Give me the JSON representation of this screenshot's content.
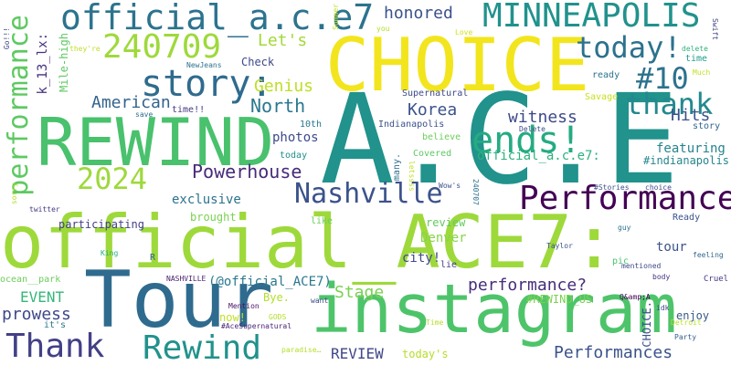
{
  "cloud": {
    "words": [
      {
        "text": "official_ACE7:",
        "color": "#9ed93b"
      },
      {
        "text": "A.C.E",
        "color": "#21928c"
      },
      {
        "text": "instagram",
        "color": "#4ec46a"
      },
      {
        "text": "Tour",
        "color": "#2f6b8e"
      },
      {
        "text": "CHOICE",
        "color": "#f2e51d"
      },
      {
        "text": "REWIND",
        "color": "#49c16d"
      },
      {
        "text": "official_a.c.e7",
        "color": "#2c738e"
      },
      {
        "text": "MINNEAPOLIS",
        "color": "#21928c"
      },
      {
        "text": "Thank",
        "color": "#424086"
      },
      {
        "text": "Rewind",
        "color": "#21928c"
      },
      {
        "text": "story:",
        "color": "#2f6b8e"
      },
      {
        "text": "240709",
        "color": "#9ed93b"
      },
      {
        "text": "Performance",
        "color": "#440154"
      },
      {
        "text": "Nashville",
        "color": "#3b528b"
      },
      {
        "text": "thank",
        "color": "#23898e"
      },
      {
        "text": "ends!",
        "color": "#25ab82"
      },
      {
        "text": "today!",
        "color": "#2c728e"
      },
      {
        "text": "2024",
        "color": "#9ed93b"
      },
      {
        "text": "#10",
        "color": "#2c728e"
      },
      {
        "text": "performance",
        "color": "#5ec962"
      },
      {
        "text": "Powerhouse",
        "color": "#472a7a"
      },
      {
        "text": "Let's",
        "color": "#a2da37"
      },
      {
        "text": "Genius",
        "color": "#bddf26"
      },
      {
        "text": "American",
        "color": "#33638d"
      },
      {
        "text": "North",
        "color": "#2a788e"
      },
      {
        "text": "honored",
        "color": "#3b528b"
      },
      {
        "text": "Korea",
        "color": "#3b528b"
      },
      {
        "text": "witness",
        "color": "#3e4a89"
      },
      {
        "text": "Hits",
        "color": "#3b528b"
      },
      {
        "text": "performance?",
        "color": "#472d7b"
      },
      {
        "text": "Performances",
        "color": "#3b528b"
      },
      {
        "text": "prowess",
        "color": "#3e4989"
      },
      {
        "text": "EVENT",
        "color": "#35b779"
      },
      {
        "text": "Stage",
        "color": "#7ad151"
      },
      {
        "text": "REVIEW",
        "color": "#3f4788"
      },
      {
        "text": "exclusive",
        "color": "#2c728e"
      },
      {
        "text": "(@official_ACE7)",
        "color": "#2a788e"
      },
      {
        "text": "official_a.c.e7:",
        "color": "#2db27d"
      },
      {
        "text": "featuring",
        "color": "#25838e"
      },
      {
        "text": "#indianapolis",
        "color": "#25858e"
      },
      {
        "text": "photos",
        "color": "#3e4a89"
      },
      {
        "text": "k_13_lx:",
        "color": "#46327e"
      },
      {
        "text": "Mile-high",
        "color": "#5ec962"
      },
      {
        "text": "participating",
        "color": "#433e85"
      },
      {
        "text": "brought",
        "color": "#7ad151"
      },
      {
        "text": "review",
        "color": "#63cb5f"
      },
      {
        "text": "Denver",
        "color": "#86d549"
      },
      {
        "text": "city!",
        "color": "#3e4989"
      },
      {
        "text": "tour",
        "color": "#3b528b"
      },
      {
        "text": "#REWIND_US",
        "color": "#7ad151"
      },
      {
        "text": "enjoy",
        "color": "#38598c"
      },
      {
        "text": "Bye.",
        "color": "#b5de2b"
      },
      {
        "text": "now!",
        "color": "#c2df23"
      },
      {
        "text": "today's",
        "color": "#b5de2b"
      },
      {
        "text": "Covered",
        "color": "#5ec962"
      },
      {
        "text": "believe",
        "color": "#6ccd5a"
      },
      {
        "text": "10th",
        "color": "#29798e"
      },
      {
        "text": "today",
        "color": "#21918c"
      },
      {
        "text": "Supernatural",
        "color": "#3e4989"
      },
      {
        "text": "Indianapolis",
        "color": "#3b528b"
      },
      {
        "text": "Savage",
        "color": "#c8e020"
      },
      {
        "text": "Check",
        "color": "#3e4989"
      },
      {
        "text": "time!!",
        "color": "#443a83"
      },
      {
        "text": "like",
        "color": "#6ccd5a"
      },
      {
        "text": "lie",
        "color": "#433e85"
      },
      {
        "text": "#AceSupernatural",
        "color": "#482576"
      },
      {
        "text": "Mention",
        "color": "#471063"
      },
      {
        "text": "NASHVILLE",
        "color": "#482071"
      },
      {
        "text": "ocean__park",
        "color": "#6ccd5a"
      },
      {
        "text": "twitter",
        "color": "#443983"
      },
      {
        "text": "Ready",
        "color": "#3b528b"
      },
      {
        "text": "story",
        "color": "#31668e"
      },
      {
        "text": "ready",
        "color": "#2c728e"
      },
      {
        "text": "time",
        "color": "#1f9e89"
      },
      {
        "text": "delete",
        "color": "#2db27d"
      },
      {
        "text": "Love",
        "color": "#d2e21b"
      },
      {
        "text": "NewJeans",
        "color": "#2c728e"
      },
      {
        "text": "save",
        "color": "#2d708e"
      },
      {
        "text": "King",
        "color": "#29af7f"
      },
      {
        "text": "R",
        "color": "#34618d"
      },
      {
        "text": "Taylor",
        "color": "#3b528b"
      },
      {
        "text": "pic",
        "color": "#4ac16d"
      },
      {
        "text": "guy",
        "color": "#2c728e"
      },
      {
        "text": "mentioned",
        "color": "#3e4a89"
      },
      {
        "text": "body",
        "color": "#46337e"
      },
      {
        "text": "feeling",
        "color": "#31688e"
      },
      {
        "text": "Cruel",
        "color": "#443983"
      },
      {
        "text": "Party",
        "color": "#35608d"
      },
      {
        "text": "want",
        "color": "#3e4989"
      },
      {
        "text": "GODS",
        "color": "#b5de2b"
      },
      {
        "text": "it's",
        "color": "#2a788e"
      },
      {
        "text": "Time",
        "color": "#b5de2b"
      },
      {
        "text": "Q&amp;A",
        "color": "#440154"
      },
      {
        "text": "idk",
        "color": "#3f4889"
      },
      {
        "text": "many.",
        "color": "#2e6f8e"
      },
      {
        "text": "letssss",
        "color": "#bddf26"
      },
      {
        "text": "240707",
        "color": "#2c728e"
      },
      {
        "text": "Wow's",
        "color": "#3b528b"
      },
      {
        "text": "#Stories",
        "color": "#3b528b"
      },
      {
        "text": "choice",
        "color": "#3e4a89"
      },
      {
        "text": "Delete",
        "color": "#3e4a89"
      },
      {
        "text": "you",
        "color": "#b5de2b"
      },
      {
        "text": "Summer",
        "color": "#bddf26"
      },
      {
        "text": "Swift",
        "color": "#414487"
      },
      {
        "text": "they're",
        "color": "#bddf26"
      },
      {
        "text": "Go!!!",
        "color": "#3e4a89"
      },
      {
        "text": "sorry",
        "color": "#b5de2b"
      },
      {
        "text": "paradise…",
        "color": "#b5de2b"
      },
      {
        "text": "CHOICE.",
        "color": "#3b528b"
      },
      {
        "text": "Detroit",
        "color": "#bddf26"
      },
      {
        "text": "Much",
        "color": "#c2df23"
      }
    ]
  }
}
